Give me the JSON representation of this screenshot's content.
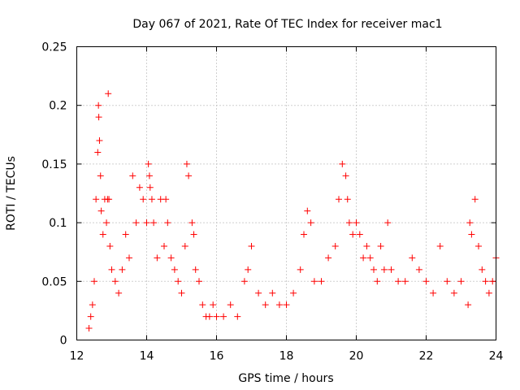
{
  "chart_data": {
    "type": "scatter",
    "title": "Day 067 of 2021, Rate Of TEC Index for receiver mac1",
    "xlabel": "GPS time / hours",
    "ylabel": "ROTI / TECUs",
    "xlim": [
      12,
      24
    ],
    "ylim": [
      0,
      0.25
    ],
    "grid": true,
    "marker": "+",
    "color": "#ff0000",
    "xticks": [
      12,
      14,
      16,
      18,
      20,
      22,
      24
    ],
    "xtick_labels": [
      "12",
      "14",
      "16",
      "18",
      "20",
      "22",
      "24"
    ],
    "yticks": [
      0,
      0.05,
      0.1,
      0.15,
      0.2,
      0.25
    ],
    "ytick_labels": [
      "0",
      "0.05",
      "0.1",
      "0.15",
      "0.2",
      "0.25"
    ],
    "series": [
      {
        "name": "ROTI",
        "x": [
          12.35,
          12.4,
          12.45,
          12.5,
          12.55,
          12.6,
          12.62,
          12.63,
          12.65,
          12.68,
          12.7,
          12.75,
          12.8,
          12.85,
          12.88,
          12.9,
          12.92,
          12.95,
          13.0,
          13.1,
          13.2,
          13.3,
          13.4,
          13.5,
          13.6,
          13.7,
          13.8,
          13.9,
          14.0,
          14.05,
          14.08,
          14.1,
          14.15,
          14.2,
          14.3,
          14.4,
          14.5,
          14.55,
          14.6,
          14.7,
          14.8,
          14.9,
          15.0,
          15.1,
          15.15,
          15.2,
          15.3,
          15.35,
          15.4,
          15.5,
          15.6,
          15.7,
          15.8,
          15.9,
          16.0,
          16.2,
          16.4,
          16.6,
          16.8,
          16.9,
          17.0,
          17.2,
          17.4,
          17.6,
          17.8,
          18.0,
          18.2,
          18.4,
          18.5,
          18.6,
          18.7,
          18.8,
          19.0,
          19.2,
          19.4,
          19.5,
          19.6,
          19.7,
          19.75,
          19.8,
          19.9,
          20.0,
          20.1,
          20.2,
          20.3,
          20.4,
          20.5,
          20.6,
          20.7,
          20.8,
          20.9,
          21.0,
          21.2,
          21.4,
          21.6,
          21.8,
          22.0,
          22.2,
          22.4,
          22.6,
          22.8,
          23.0,
          23.2,
          23.25,
          23.3,
          23.4,
          23.5,
          23.6,
          23.7,
          23.8,
          23.9,
          24.0
        ],
        "y": [
          0.01,
          0.02,
          0.03,
          0.05,
          0.12,
          0.16,
          0.2,
          0.19,
          0.17,
          0.14,
          0.11,
          0.09,
          0.12,
          0.1,
          0.12,
          0.21,
          0.12,
          0.08,
          0.06,
          0.05,
          0.04,
          0.06,
          0.09,
          0.07,
          0.14,
          0.1,
          0.13,
          0.12,
          0.1,
          0.15,
          0.14,
          0.13,
          0.12,
          0.1,
          0.07,
          0.12,
          0.08,
          0.12,
          0.1,
          0.07,
          0.06,
          0.05,
          0.04,
          0.08,
          0.15,
          0.14,
          0.1,
          0.09,
          0.06,
          0.05,
          0.03,
          0.02,
          0.02,
          0.03,
          0.02,
          0.02,
          0.03,
          0.02,
          0.05,
          0.06,
          0.08,
          0.04,
          0.03,
          0.04,
          0.03,
          0.03,
          0.04,
          0.06,
          0.09,
          0.11,
          0.1,
          0.05,
          0.05,
          0.07,
          0.08,
          0.12,
          0.15,
          0.14,
          0.12,
          0.1,
          0.09,
          0.1,
          0.09,
          0.07,
          0.08,
          0.07,
          0.06,
          0.05,
          0.08,
          0.06,
          0.1,
          0.06,
          0.05,
          0.05,
          0.07,
          0.06,
          0.05,
          0.04,
          0.08,
          0.05,
          0.04,
          0.05,
          0.03,
          0.1,
          0.09,
          0.12,
          0.08,
          0.06,
          0.05,
          0.04,
          0.05,
          0.07
        ]
      }
    ]
  }
}
